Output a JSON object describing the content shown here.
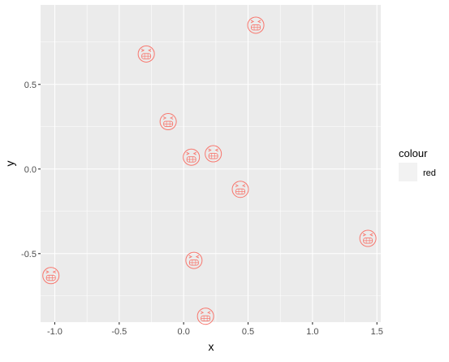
{
  "chart_data": {
    "type": "scatter",
    "xlabel": "x",
    "ylabel": "y",
    "xlim": [
      -1.11,
      1.53
    ],
    "ylim": [
      -0.905,
      0.97
    ],
    "x_ticks": [
      -1.0,
      -0.5,
      0.0,
      0.5,
      1.0,
      1.5
    ],
    "x_tick_labels": [
      "-1.0",
      "-0.5",
      "0.0",
      "0.5",
      "1.0",
      "1.5"
    ],
    "y_ticks": [
      -0.5,
      0.0,
      0.5
    ],
    "y_tick_labels": [
      "-0.5",
      "0.0",
      "0.5"
    ],
    "grid": true,
    "marker": "grinning-face-with-smiling-eyes-icon",
    "marker_color": "#F8766D",
    "panel_background": "#EBEBEB",
    "grid_color": "#FFFFFF",
    "series": [
      {
        "name": "red",
        "points": [
          {
            "x": 0.56,
            "y": 0.85
          },
          {
            "x": -0.29,
            "y": 0.68
          },
          {
            "x": -0.12,
            "y": 0.28
          },
          {
            "x": 0.06,
            "y": 0.07
          },
          {
            "x": 0.23,
            "y": 0.09
          },
          {
            "x": 0.44,
            "y": -0.12
          },
          {
            "x": 1.43,
            "y": -0.41
          },
          {
            "x": -1.03,
            "y": -0.63
          },
          {
            "x": 0.08,
            "y": -0.54
          },
          {
            "x": 0.17,
            "y": -0.87
          }
        ]
      }
    ],
    "legend": {
      "title": "colour",
      "position": "right",
      "entries": [
        "red"
      ]
    }
  }
}
